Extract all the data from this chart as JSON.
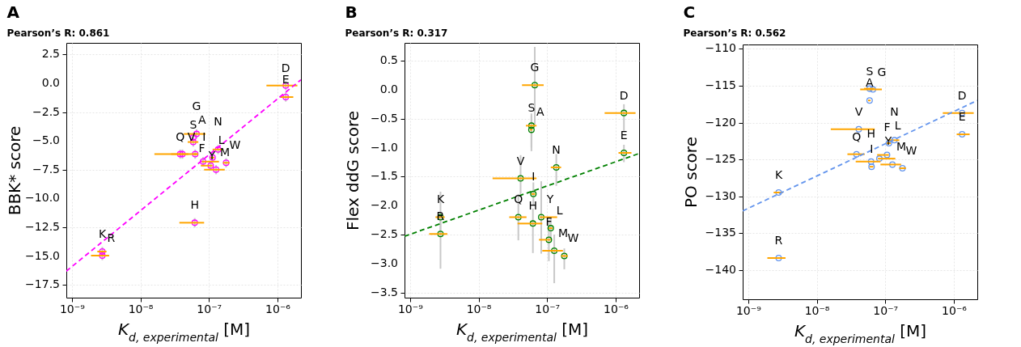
{
  "chart_data": [
    {
      "type": "scatter",
      "title": "A",
      "subtitle": "Pearson’s R: 0.861",
      "xlabel": "K$_{d, experimental}$ [M]",
      "ylabel": "BBK* score",
      "log": "x",
      "grid": true,
      "xlim": [
        8.3e-10,
        2.2e-06
      ],
      "xticks": [
        {
          "value": 1e-09,
          "label": "10⁻⁹"
        },
        {
          "value": 1e-08,
          "label": "10⁻⁸"
        },
        {
          "value": 1e-07,
          "label": "10⁻⁷"
        },
        {
          "value": 1e-06,
          "label": "10⁻⁶"
        }
      ],
      "ylim": [
        -18.6,
        3.5
      ],
      "yticks": [
        {
          "value": 2.5,
          "label": "2.5"
        },
        {
          "value": 0,
          "label": "0.0"
        },
        {
          "value": -2.5,
          "label": "−2.5"
        },
        {
          "value": -5,
          "label": "−5.0"
        },
        {
          "value": -7.5,
          "label": "−7.5"
        },
        {
          "value": -10,
          "label": "−10.0"
        },
        {
          "value": -12.5,
          "label": "−12.5"
        },
        {
          "value": -15,
          "label": "−15.0"
        },
        {
          "value": -17.5,
          "label": "−17.5"
        }
      ],
      "series": [
        {
          "type": "scatter",
          "marker": "circle",
          "color": "#ff00ff",
          "x": [
            2.78e-09,
            2.78e-09,
            3.8e-08,
            4.1e-08,
            5.9e-08,
            5.9e-08,
            6.6e-08,
            6.3e-08,
            6.2e-08,
            8.2e-08,
            1.06e-07,
            1.13e-07,
            1.27e-07,
            1.36e-07,
            1.78e-07,
            1.32e-06,
            1.32e-06
          ],
          "values": [
            -14.6,
            -14.95,
            -6.15,
            -6.15,
            -5.1,
            -4.7,
            -4.4,
            -6.15,
            -12.1,
            -6.8,
            -7.15,
            -6.45,
            -7.5,
            -5.75,
            -6.9,
            -0.2,
            -1.2
          ],
          "errors": [
            0.4,
            0.4,
            0.4,
            0.4,
            0.4,
            0.4,
            0.4,
            0.4,
            0.4,
            0.4,
            0.4,
            0.4,
            0.4,
            0.4,
            0.4,
            0.4,
            0.4
          ],
          "xerrors": [
            [
              2.35e-09,
              3.2e-09
            ],
            [
              1.9e-09,
              3.5e-09
            ],
            [
              2.8e-08,
              5e-08
            ],
            [
              1.6e-08,
              7e-08
            ],
            [
              4.9e-08,
              7e-08
            ],
            null,
            [
              4.3e-08,
              8.9e-08
            ],
            [
              5.9e-08,
              6.7e-08
            ],
            [
              3.7e-08,
              8.5e-08
            ],
            [
              7.8e-08,
              1.4e-07
            ],
            [
              7.6e-08,
              1.13e-07
            ],
            [
              1.05e-07,
              1.2e-07
            ],
            [
              8.5e-08,
              1.7e-07
            ],
            [
              1.13e-07,
              1.6e-07
            ],
            [
              1.6e-07,
              2e-07
            ],
            [
              6.9e-07,
              1.95e-06
            ],
            [
              1.1e-06,
              1.7e-06
            ]
          ]
        },
        {
          "type": "line",
          "color": "#ff00ff",
          "line_style": "dashed",
          "x": [
            8.3e-10,
            2.2e-06
          ],
          "values": [
            -16.3,
            0.3
          ]
        }
      ],
      "annotations": [
        {
          "text": "K",
          "x": 2.78e-09,
          "y": -14.6
        },
        {
          "text": "R",
          "x": 2.78e-09,
          "y": -14.95
        },
        {
          "text": "Q",
          "x": 3.8e-08,
          "y": -6.15
        },
        {
          "text": "V",
          "x": 4.1e-08,
          "y": -6.15
        },
        {
          "text": "S",
          "x": 5.9e-08,
          "y": -5.1
        },
        {
          "text": "A",
          "x": 5.9e-08,
          "y": -4.7
        },
        {
          "text": "G",
          "x": 6.6e-08,
          "y": -4.4
        },
        {
          "text": "I",
          "x": 6.3e-08,
          "y": -6.15
        },
        {
          "text": "H",
          "x": 6.2e-08,
          "y": -12.1
        },
        {
          "text": "Y",
          "x": 8.2e-08,
          "y": -6.8
        },
        {
          "text": "F",
          "x": 1.06e-07,
          "y": -7.15
        },
        {
          "text": "L",
          "x": 1.13e-07,
          "y": -6.45
        },
        {
          "text": "M",
          "x": 1.27e-07,
          "y": -7.5
        },
        {
          "text": "N",
          "x": 1.36e-07,
          "y": -5.75
        },
        {
          "text": "W",
          "x": 1.78e-07,
          "y": -6.9
        },
        {
          "text": "D",
          "x": 1.32e-06,
          "y": -0.2
        },
        {
          "text": "E",
          "x": 1.32e-06,
          "y": -1.2
        }
      ]
    },
    {
      "type": "scatter",
      "title": "B",
      "subtitle": "Pearson’s R: 0.317",
      "xlabel": "K$_{d, experimental}$ [M]",
      "ylabel": "Flex ddG score",
      "log": "x",
      "grid": true,
      "xlim": [
        8.3e-10,
        2.2e-06
      ],
      "xticks": [
        {
          "value": 1e-09,
          "label": "10⁻⁹"
        },
        {
          "value": 1e-08,
          "label": "10⁻⁸"
        },
        {
          "value": 1e-07,
          "label": "10⁻⁷"
        },
        {
          "value": 1e-06,
          "label": "10⁻⁶"
        }
      ],
      "ylim": [
        -3.59,
        0.81
      ],
      "yticks": [
        {
          "value": 0.5,
          "label": "0.5"
        },
        {
          "value": 0,
          "label": "0.0"
        },
        {
          "value": -0.5,
          "label": "−0.5"
        },
        {
          "value": -1,
          "label": "−1.0"
        },
        {
          "value": -1.5,
          "label": "−1.5"
        },
        {
          "value": -2,
          "label": "−2.0"
        },
        {
          "value": -2.5,
          "label": "−2.5"
        },
        {
          "value": -3,
          "label": "−3.0"
        },
        {
          "value": -3.5,
          "label": "−3.5"
        }
      ],
      "series": [
        {
          "type": "scatter",
          "marker": "circle",
          "color": "#008000",
          "x": [
            2.78e-09,
            2.78e-09,
            3.8e-08,
            4.1e-08,
            5.9e-08,
            5.9e-08,
            6.6e-08,
            6.3e-08,
            6.2e-08,
            8.2e-08,
            1.06e-07,
            1.13e-07,
            1.27e-07,
            1.36e-07,
            1.78e-07,
            1.32e-06,
            1.32e-06
          ],
          "values": [
            -2.2,
            -2.49,
            -2.2,
            -1.53,
            -0.62,
            -0.69,
            0.08,
            -1.8,
            -2.31,
            -2.2,
            -2.59,
            -2.39,
            -2.78,
            -1.34,
            -2.87,
            -0.4,
            -1.09
          ],
          "errors": [
            [
              -2.5,
              -1.76
            ],
            [
              -3.09,
              -2.2
            ],
            [
              -2.6,
              -1.8
            ],
            [
              -1.8,
              -1.13
            ],
            [
              -1.0,
              -0.45
            ],
            [
              -1.06,
              -0.41
            ],
            [
              -0.6,
              0.74
            ],
            [
              -2.0,
              -1.6
            ],
            [
              -2.82,
              -2.05
            ],
            [
              -2.83,
              -1.58
            ],
            [
              -2.96,
              -2.25
            ],
            [
              -2.6,
              -2.2
            ],
            [
              -3.34,
              -2.5
            ],
            [
              -1.66,
              -1.11
            ],
            [
              -3.1,
              -2.74
            ],
            [
              -0.71,
              -0.25
            ],
            [
              -1.25,
              -0.95
            ]
          ],
          "xerrors": [
            [
              2.35e-09,
              3.2e-09
            ],
            [
              1.9e-09,
              3.5e-09
            ],
            [
              2.8e-08,
              5e-08
            ],
            [
              1.6e-08,
              7e-08
            ],
            [
              4.9e-08,
              7e-08
            ],
            [
              5.6e-08,
              6.1e-08
            ],
            [
              4.3e-08,
              8.9e-08
            ],
            [
              5.9e-08,
              6.7e-08
            ],
            [
              3.7e-08,
              8.5e-08
            ],
            [
              7.8e-08,
              1.4e-07
            ],
            [
              7.6e-08,
              1.13e-07
            ],
            [
              1.05e-07,
              1.2e-07
            ],
            [
              8.5e-08,
              1.7e-07
            ],
            [
              1.13e-07,
              1.6e-07
            ],
            [
              1.6e-07,
              2e-07
            ],
            [
              6.9e-07,
              1.95e-06
            ],
            [
              1.1e-06,
              1.7e-06
            ]
          ]
        },
        {
          "type": "line",
          "color": "#008000",
          "line_style": "dashed",
          "x": [
            8.3e-10,
            2.2e-06
          ],
          "values": [
            -2.53,
            -1.1
          ]
        }
      ],
      "annotations": [
        {
          "text": "K",
          "x": 2.78e-09,
          "y": -2.2
        },
        {
          "text": "R",
          "x": 2.78e-09,
          "y": -2.49
        },
        {
          "text": "Q",
          "x": 3.8e-08,
          "y": -2.2
        },
        {
          "text": "V",
          "x": 4.1e-08,
          "y": -1.53
        },
        {
          "text": "S",
          "x": 5.9e-08,
          "y": -0.62
        },
        {
          "text": "A",
          "x": 5.9e-08,
          "y": -0.69
        },
        {
          "text": "G",
          "x": 6.6e-08,
          "y": 0.08
        },
        {
          "text": "I",
          "x": 6.3e-08,
          "y": -1.8
        },
        {
          "text": "H",
          "x": 6.2e-08,
          "y": -2.31
        },
        {
          "text": "Y",
          "x": 8.2e-08,
          "y": -2.2
        },
        {
          "text": "F",
          "x": 1.06e-07,
          "y": -2.59
        },
        {
          "text": "L",
          "x": 1.13e-07,
          "y": -2.39
        },
        {
          "text": "M",
          "x": 1.27e-07,
          "y": -2.78
        },
        {
          "text": "N",
          "x": 1.36e-07,
          "y": -1.34
        },
        {
          "text": "W",
          "x": 1.78e-07,
          "y": -2.87
        },
        {
          "text": "D",
          "x": 1.32e-06,
          "y": -0.4
        },
        {
          "text": "E",
          "x": 1.32e-06,
          "y": -1.09
        }
      ]
    },
    {
      "type": "scatter",
      "title": "C",
      "subtitle": "Pearson’s R: 0.562",
      "xlabel": "K$_{d, experimental}$ [M]",
      "ylabel": "PO score",
      "log": "x",
      "grid": true,
      "xlim": [
        8.3e-10,
        2.2e-06
      ],
      "xticks": [
        {
          "value": 1e-09,
          "label": "10⁻⁹"
        },
        {
          "value": 1e-08,
          "label": "10⁻⁸"
        },
        {
          "value": 1e-07,
          "label": "10⁻⁷"
        },
        {
          "value": 1e-06,
          "label": "10⁻⁶"
        }
      ],
      "ylim": [
        -144.0,
        -109.4
      ],
      "yticks": [
        {
          "value": -110,
          "label": "−110"
        },
        {
          "value": -115,
          "label": "−115"
        },
        {
          "value": -120,
          "label": "−120"
        },
        {
          "value": -125,
          "label": "−125"
        },
        {
          "value": -130,
          "label": "−130"
        },
        {
          "value": -135,
          "label": "−135"
        },
        {
          "value": -140,
          "label": "−140"
        }
      ],
      "series": [
        {
          "type": "scatter",
          "marker": "circle",
          "color": "#6495ed",
          "x": [
            2.78e-09,
            2.78e-09,
            3.8e-08,
            4.1e-08,
            5.9e-08,
            5.9e-08,
            6.6e-08,
            6.3e-08,
            6.2e-08,
            8.2e-08,
            1.06e-07,
            1.13e-07,
            1.27e-07,
            1.36e-07,
            1.78e-07,
            1.32e-06,
            1.32e-06
          ],
          "values": [
            -129.5,
            -138.4,
            -124.3,
            -120.9,
            -115.4,
            -117.0,
            -115.5,
            -126.0,
            -125.3,
            -124.9,
            -124.4,
            -122.8,
            -125.7,
            -122.4,
            -126.2,
            -118.7,
            -121.6
          ],
          "xerrors": [
            [
              2.35e-09,
              3.2e-09
            ],
            [
              1.9e-09,
              3.5e-09
            ],
            [
              2.8e-08,
              5e-08
            ],
            [
              1.6e-08,
              7e-08
            ],
            [
              4.9e-08,
              7e-08
            ],
            [
              5.6e-08,
              6.1e-08
            ],
            [
              4.3e-08,
              8.9e-08
            ],
            [
              5.9e-08,
              6.7e-08
            ],
            [
              3.7e-08,
              8.5e-08
            ],
            [
              7.8e-08,
              1.4e-07
            ],
            [
              7.6e-08,
              1.13e-07
            ],
            [
              1.05e-07,
              1.2e-07
            ],
            [
              8.5e-08,
              1.7e-07
            ],
            [
              1.13e-07,
              1.6e-07
            ],
            [
              1.6e-07,
              2e-07
            ],
            [
              6.9e-07,
              1.95e-06
            ],
            [
              1.1e-06,
              1.7e-06
            ]
          ]
        },
        {
          "type": "line",
          "color": "#6495ed",
          "line_style": "dashed",
          "x": [
            8.3e-10,
            2.2e-06
          ],
          "values": [
            -132.0,
            -117.0
          ]
        }
      ],
      "annotations": [
        {
          "text": "K",
          "x": 2.78e-09,
          "y": -129.5
        },
        {
          "text": "R",
          "x": 2.78e-09,
          "y": -138.4
        },
        {
          "text": "Q",
          "x": 3.8e-08,
          "y": -124.3
        },
        {
          "text": "V",
          "x": 4.1e-08,
          "y": -120.9
        },
        {
          "text": "S",
          "x": 5.9e-08,
          "y": -115.4
        },
        {
          "text": "A",
          "x": 5.9e-08,
          "y": -117.0
        },
        {
          "text": "G",
          "x": 6.6e-08,
          "y": -115.5
        },
        {
          "text": "I",
          "x": 6.3e-08,
          "y": -126.0
        },
        {
          "text": "H",
          "x": 6.2e-08,
          "y": -125.3
        },
        {
          "text": "Y",
          "x": 8.2e-08,
          "y": -124.9
        },
        {
          "text": "F",
          "x": 1.06e-07,
          "y": -124.4
        },
        {
          "text": "L",
          "x": 1.13e-07,
          "y": -122.8
        },
        {
          "text": "M",
          "x": 1.27e-07,
          "y": -125.7
        },
        {
          "text": "N",
          "x": 1.36e-07,
          "y": -122.4
        },
        {
          "text": "W",
          "x": 1.78e-07,
          "y": -126.2
        },
        {
          "text": "D",
          "x": 1.32e-06,
          "y": -118.7
        },
        {
          "text": "E",
          "x": 1.32e-06,
          "y": -121.6
        }
      ]
    }
  ]
}
